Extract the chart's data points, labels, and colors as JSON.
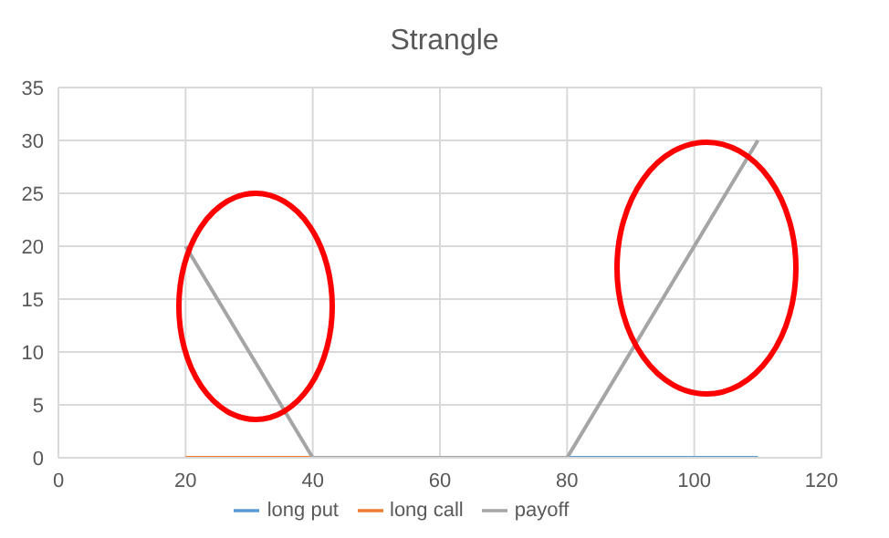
{
  "chart_data": {
    "type": "line",
    "title": "Strangle",
    "x": [
      20,
      40,
      80,
      110
    ],
    "series": [
      {
        "name": "long put",
        "color": "#5b9bd5",
        "values": [
          null,
          null,
          0,
          0
        ]
      },
      {
        "name": "long call",
        "color": "#ed7d31",
        "values": [
          0,
          0,
          null,
          null
        ]
      },
      {
        "name": "payoff",
        "color": "#a5a5a5",
        "values": [
          20,
          0,
          0,
          30
        ]
      }
    ],
    "xlim": [
      0,
      120
    ],
    "xticks": [
      0,
      20,
      40,
      60,
      80,
      100,
      120
    ],
    "ylim": [
      0,
      35
    ],
    "yticks": [
      0,
      5,
      10,
      15,
      20,
      25,
      30,
      35
    ],
    "grid": true,
    "legend": "bottom",
    "marker": "none",
    "line_style": "solid"
  }
}
